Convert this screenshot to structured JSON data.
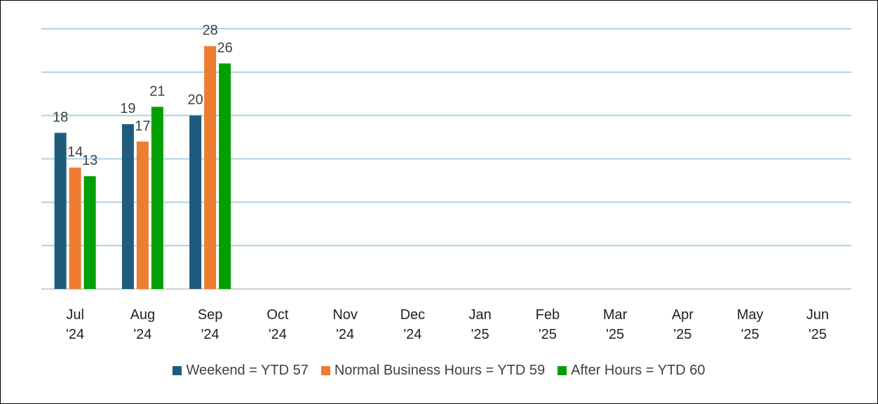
{
  "chart_data": {
    "type": "bar",
    "categories": [
      "Jul '24",
      "Aug '24",
      "Sep '24",
      "Oct '24",
      "Nov '24",
      "Dec '24",
      "Jan '25",
      "Feb '25",
      "Mar '25",
      "Apr '25",
      "May '25",
      "Jun '25"
    ],
    "series": [
      {
        "name": "Weekend = YTD 57",
        "color": "#1f5b7c",
        "values": [
          18,
          19,
          20,
          null,
          null,
          null,
          null,
          null,
          null,
          null,
          null,
          null
        ]
      },
      {
        "name": "Normal Business Hours = YTD 59",
        "color": "#ed7d31",
        "values": [
          14,
          17,
          28,
          null,
          null,
          null,
          null,
          null,
          null,
          null,
          null,
          null
        ]
      },
      {
        "name": "After Hours = YTD 60",
        "color": "#00a000",
        "values": [
          13,
          21,
          26,
          null,
          null,
          null,
          null,
          null,
          null,
          null,
          null,
          null
        ]
      }
    ],
    "ylim": [
      0,
      30
    ],
    "yticks": [
      0,
      5,
      10,
      15,
      20,
      25,
      30
    ],
    "grid": true
  }
}
